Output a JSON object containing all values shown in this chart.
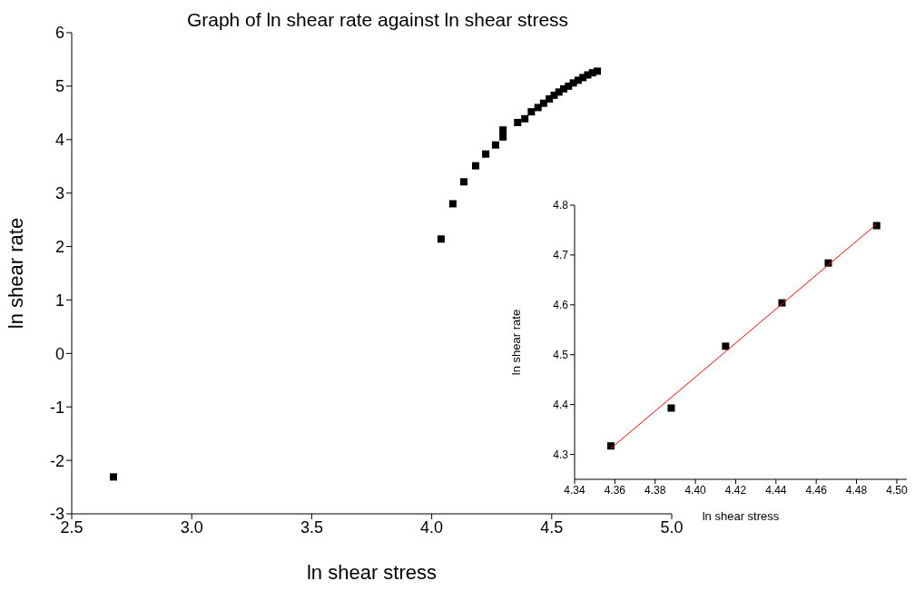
{
  "chart_data": [
    {
      "type": "scatter",
      "title": "Graph of ln shear rate against ln shear stress",
      "xlabel": "ln shear stress",
      "ylabel": "ln shear rate",
      "marker": "square",
      "x": [
        2.674,
        4.039,
        4.088,
        4.134,
        4.183,
        4.225,
        4.266,
        4.297,
        4.297,
        4.358,
        4.388,
        4.415,
        4.443,
        4.466,
        4.49,
        4.51,
        4.53,
        4.55,
        4.57,
        4.59,
        4.61,
        4.63,
        4.65,
        4.67,
        4.69
      ],
      "series": [
        {
          "color": "#000000",
          "values": [
            -2.31,
            2.14,
            2.8,
            3.21,
            3.51,
            3.73,
            3.9,
            4.05,
            4.18,
            4.32,
            4.39,
            4.52,
            4.6,
            4.68,
            4.76,
            4.83,
            4.89,
            4.95,
            5.0,
            5.06,
            5.11,
            5.16,
            5.21,
            5.25,
            5.28
          ]
        }
      ],
      "xlim": [
        2.5,
        5.0
      ],
      "xticks": [
        {
          "value": 2.5,
          "label": "2.5"
        },
        {
          "value": 3,
          "label": "3.0"
        },
        {
          "value": 3.5,
          "label": "3.5"
        },
        {
          "value": 4,
          "label": "4.0"
        },
        {
          "value": 4.5,
          "label": "4.5"
        },
        {
          "value": 5,
          "label": "5.0"
        }
      ],
      "ylim": [
        -3,
        6
      ],
      "yticks": [
        -3,
        -2,
        -1,
        0,
        1,
        2,
        3,
        4,
        5,
        6
      ]
    },
    {
      "type": "scatter",
      "xlabel": "ln shear stress",
      "ylabel": "ln shear rate",
      "marker": "square",
      "x": [
        4.358,
        4.388,
        4.415,
        4.443,
        4.466,
        4.49
      ],
      "series": [
        {
          "color": "#000000",
          "values": [
            4.317,
            4.393,
            4.517,
            4.604,
            4.684,
            4.759
          ]
        },
        {
          "type": "line",
          "marker": "none",
          "color": "#ff0000",
          "x": [
            4.358,
            4.49
          ],
          "values": [
            4.312,
            4.762
          ]
        }
      ],
      "xlim": [
        4.34,
        4.505
      ],
      "xticks": [
        4.34,
        4.36,
        4.38,
        {
          "value": 4.4,
          "label": "4.40"
        },
        4.42,
        4.44,
        4.46,
        4.48,
        {
          "value": 4.5,
          "label": "4.50"
        }
      ],
      "ylim": [
        4.25,
        4.8
      ],
      "yticks": [
        4.3,
        4.4,
        4.5,
        4.6,
        4.7,
        4.8
      ]
    }
  ]
}
